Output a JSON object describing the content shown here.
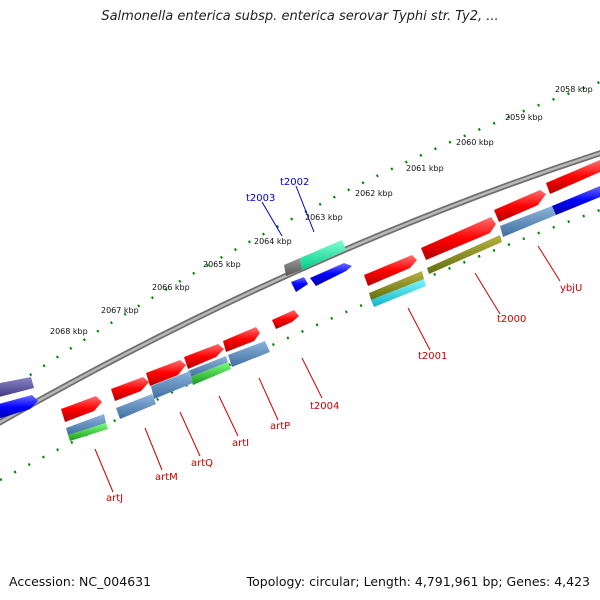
{
  "title": "Salmonella enterica subsp. enterica serovar Typhi str. Ty2, ...",
  "footer": {
    "accession": "Accession: NC_004631",
    "summary": "Topology: circular; Length: 4,791,961 bp; Genes: 4,423"
  },
  "scale_labels": [
    "2058 kbp",
    "2059 kbp",
    "2060 kbp",
    "2061 kbp",
    "2062 kbp",
    "2063 kbp",
    "2064 kbp",
    "2065 kbp",
    "2066 kbp",
    "2067 kbp",
    "2068 kbp"
  ],
  "gene_labels": [
    "t2002",
    "t2003",
    "ybjU",
    "t2000",
    "t2001",
    "t2004",
    "artP",
    "artI",
    "artQ",
    "artM",
    "artJ"
  ],
  "colors": {
    "forward_cds": "#ff0000",
    "reverse_cds": "#0000ff",
    "trna": "#00ff99",
    "blue_label": "#0000cc",
    "red_label": "#cc0000",
    "ticks": "#007700",
    "backbone": "#888888"
  }
}
